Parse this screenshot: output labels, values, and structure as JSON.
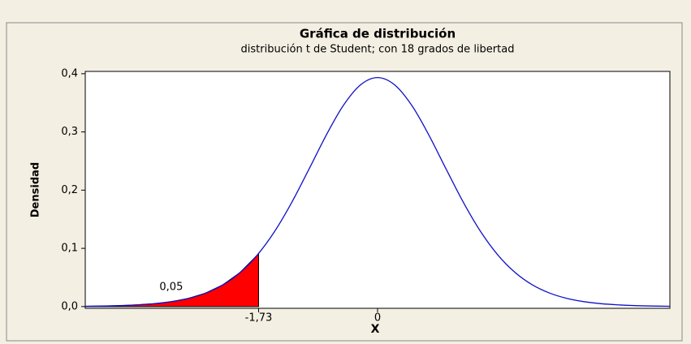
{
  "chart_data": {
    "type": "line",
    "title": "Gráfica de distribución",
    "subtitle": "distribución t de Student; con 18 grados de libertad",
    "xlabel": "X",
    "ylabel": "Densidad",
    "color": "#1010c8",
    "x": [
      -4.25,
      -4,
      -3.75,
      -3.5,
      -3.25,
      -3,
      -2.75,
      -2.5,
      -2.25,
      -2,
      -1.75,
      -1.5,
      -1.25,
      -1,
      -0.75,
      -0.5,
      -0.25,
      0,
      0.25,
      0.5,
      0.75,
      1,
      1.25,
      1.5,
      1.75,
      2,
      2.25,
      2.5,
      2.75,
      3,
      3.25,
      3.5,
      3.75,
      4,
      4.25
    ],
    "values": [
      0.0005,
      0.0009,
      0.0016,
      0.0029,
      0.0049,
      0.0084,
      0.0141,
      0.0232,
      0.0373,
      0.0585,
      0.0884,
      0.1285,
      0.1784,
      0.2354,
      0.2937,
      0.3451,
      0.3807,
      0.3934,
      0.3807,
      0.3451,
      0.2937,
      0.2354,
      0.1784,
      0.1285,
      0.0884,
      0.0585,
      0.0373,
      0.0232,
      0.0141,
      0.0084,
      0.0049,
      0.0029,
      0.0016,
      0.0009,
      0.0005
    ],
    "shaded": {
      "color": "#ff0000",
      "x": [
        -4.25,
        -4,
        -3.75,
        -3.5,
        -3.25,
        -3,
        -2.75,
        -2.5,
        -2.25,
        -2,
        -1.75,
        -1.73
      ],
      "values": [
        0.0005,
        0.0009,
        0.0016,
        0.0029,
        0.0049,
        0.0084,
        0.0141,
        0.0232,
        0.0373,
        0.0585,
        0.0884,
        0.0913
      ]
    },
    "annotations": [
      {
        "text": "0,05",
        "x": -3.0,
        "y": 0.033
      }
    ],
    "xlim": [
      -4.25,
      4.25
    ],
    "ylim": [
      -0.003,
      0.404
    ],
    "xticks": [
      {
        "value": -1.73,
        "label": "-1,73"
      },
      0
    ],
    "yticks": [
      {
        "value": 0,
        "label": "0,0"
      },
      {
        "value": 0.1,
        "label": "0,1"
      },
      {
        "value": 0.2,
        "label": "0,2"
      },
      {
        "value": 0.3,
        "label": "0,3"
      },
      {
        "value": 0.4,
        "label": "0,4"
      }
    ]
  }
}
